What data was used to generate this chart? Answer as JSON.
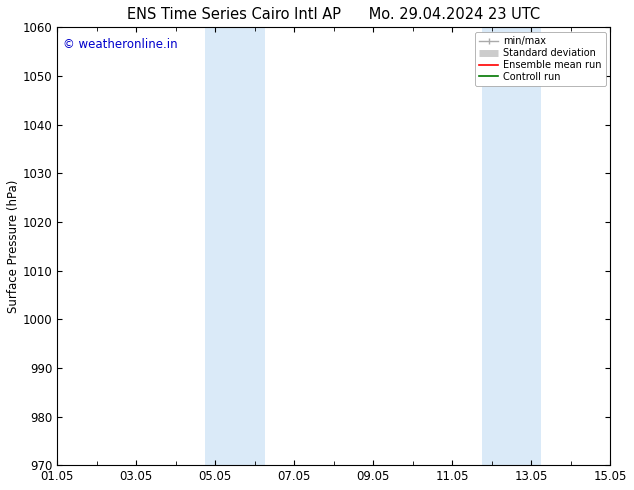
{
  "title_left": "ENS Time Series Cairo Intl AP",
  "title_right": "Mo. 29.04.2024 23 UTC",
  "ylabel": "Surface Pressure (hPa)",
  "ylim": [
    970,
    1060
  ],
  "yticks": [
    970,
    980,
    990,
    1000,
    1010,
    1020,
    1030,
    1040,
    1050,
    1060
  ],
  "xlim_start": 0,
  "xlim_end": 14,
  "xtick_positions": [
    0,
    2,
    4,
    6,
    8,
    10,
    12,
    14
  ],
  "xtick_labels": [
    "01.05",
    "03.05",
    "05.05",
    "07.05",
    "09.05",
    "11.05",
    "13.05",
    "15.05"
  ],
  "shaded_bands": [
    {
      "x_start": 3.75,
      "x_end": 5.25
    },
    {
      "x_start": 10.75,
      "x_end": 12.25
    }
  ],
  "band_color": "#daeaf8",
  "watermark_text": "© weatheronline.in",
  "watermark_color": "#0000cc",
  "legend_items": [
    {
      "label": "min/max",
      "color": "#aaaaaa",
      "lw": 1.0
    },
    {
      "label": "Standard deviation",
      "color": "#cccccc",
      "lw": 5
    },
    {
      "label": "Ensemble mean run",
      "color": "#ff0000",
      "lw": 1.2
    },
    {
      "label": "Controll run",
      "color": "#007700",
      "lw": 1.2
    }
  ],
  "background_color": "#ffffff",
  "axes_edge_color": "#000000",
  "title_fontsize": 10.5,
  "tick_fontsize": 8.5,
  "ylabel_fontsize": 8.5,
  "watermark_fontsize": 8.5
}
